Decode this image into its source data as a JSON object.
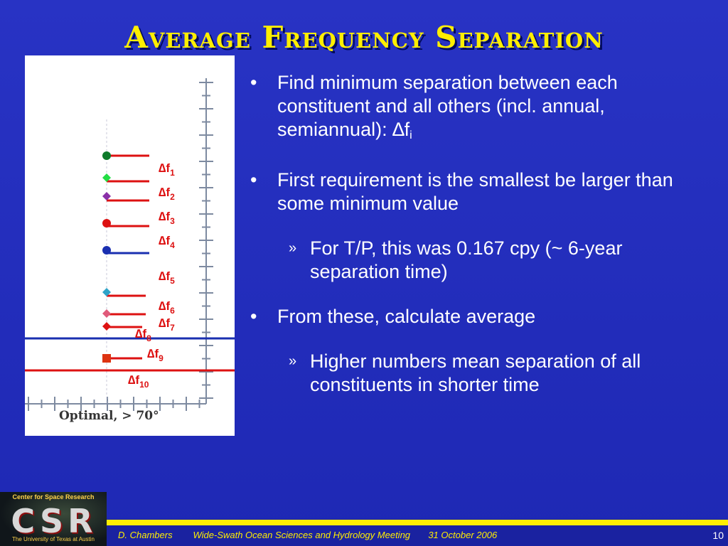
{
  "slide": {
    "title": "Average Frequency Separation",
    "bullets": [
      {
        "text": "Find minimum separation between each constituent and all others (incl. annual, semiannual): ",
        "symbol": "∆",
        "var": "f",
        "sub": "i"
      },
      {
        "text": "First requirement is the smallest be larger than some minimum value"
      },
      {
        "text": "For T/P, this was 0.167 cpy (~ 6-year separation time)",
        "level": 2
      },
      {
        "text": "From these, calculate average"
      },
      {
        "text": "Higher numbers mean separation of all constituents in shorter time",
        "level": 2
      }
    ],
    "bullet_symbol": "•",
    "sub_bullet_symbol": "»"
  },
  "figure": {
    "caption": "Optimal, > 70°",
    "labels": [
      {
        "delta": "∆",
        "f": "f",
        "sub": "1"
      },
      {
        "delta": "∆",
        "f": "f",
        "sub": "2"
      },
      {
        "delta": "∆",
        "f": "f",
        "sub": "3"
      },
      {
        "delta": "∆",
        "f": "f",
        "sub": "4"
      },
      {
        "delta": "∆",
        "f": "f",
        "sub": "5"
      },
      {
        "delta": "∆",
        "f": "f",
        "sub": "6"
      },
      {
        "delta": "∆",
        "f": "f",
        "sub": "7"
      },
      {
        "delta": "∆",
        "f": "f",
        "sub": "8"
      },
      {
        "delta": "∆",
        "f": "f",
        "sub": "9"
      },
      {
        "delta": "∆",
        "f": "f",
        "sub": "10"
      }
    ],
    "colors": {
      "red": "#dd1111",
      "blue": "#1a2fb0",
      "green": "#0e7a2a"
    }
  },
  "footer": {
    "author": "D. Chambers",
    "meeting": "Wide-Swath Ocean Sciences and Hydrology Meeting",
    "date": "31 October 2006",
    "page": "10"
  },
  "logo": {
    "top": "Center for Space Research",
    "letters": "CSR",
    "bottom": "The University of Texas at Austin"
  },
  "theme": {
    "background": "#2330bf",
    "accent": "#ffee00",
    "text": "#ffffff"
  }
}
